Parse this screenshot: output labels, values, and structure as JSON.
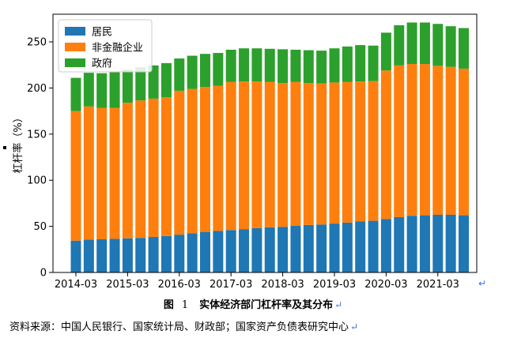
{
  "figure": {
    "caption_prefix": "图",
    "caption_number": "1",
    "caption_text": "实体经济部门杠杆率及其分布",
    "source_text": "资料来源：中国人民银行、国家统计局、财政部；国家资产负债表研究中心",
    "return_mark": "↵"
  },
  "chart_data": {
    "type": "bar",
    "stacked": true,
    "ylabel": "杠杆率（%）",
    "ylim": [
      0,
      280
    ],
    "yticks": [
      0,
      50,
      100,
      150,
      200,
      250
    ],
    "x_tick_labels": [
      "2014-03",
      "2015-03",
      "2016-03",
      "2017-03",
      "2018-03",
      "2019-03",
      "2020-03",
      "2021-03"
    ],
    "x_tick_every": 4,
    "legend_position": "top-left",
    "grid": false,
    "categories": [
      "2014-03",
      "2014-06",
      "2014-09",
      "2014-12",
      "2015-03",
      "2015-06",
      "2015-09",
      "2015-12",
      "2016-03",
      "2016-06",
      "2016-09",
      "2016-12",
      "2017-03",
      "2017-06",
      "2017-09",
      "2017-12",
      "2018-03",
      "2018-06",
      "2018-09",
      "2018-12",
      "2019-03",
      "2019-06",
      "2019-09",
      "2019-12",
      "2020-03",
      "2020-06",
      "2020-09",
      "2020-12",
      "2021-03",
      "2021-06",
      "2021-09"
    ],
    "series": [
      {
        "name": "居民",
        "color": "#1f77b4",
        "values": [
          34.5,
          35.5,
          36,
          36.5,
          37,
          37.5,
          38.5,
          39.5,
          41,
          42.5,
          44,
          45,
          46,
          47,
          48,
          49,
          49.5,
          50.5,
          51.5,
          52,
          53,
          54,
          55.5,
          56,
          58,
          60,
          61.5,
          62,
          62.5,
          62.5,
          62
        ]
      },
      {
        "name": "非金融企业",
        "color": "#ff7f0e",
        "values": [
          140.5,
          144.5,
          142.5,
          142,
          147,
          149,
          150,
          150.5,
          156,
          156.5,
          157,
          157.5,
          160.5,
          160,
          159,
          157.5,
          156,
          156,
          154,
          153,
          153,
          152.5,
          151.5,
          151.5,
          161,
          164.5,
          164.5,
          164,
          161.5,
          160.5,
          159
        ]
      },
      {
        "name": "政府",
        "color": "#2ca02c",
        "values": [
          36,
          36.5,
          37.5,
          38.5,
          36,
          36,
          36,
          37,
          35,
          36,
          36,
          35.5,
          35,
          36,
          36,
          36,
          36.5,
          35,
          35.5,
          35.5,
          37,
          38.5,
          39.5,
          38.5,
          41,
          43.5,
          45,
          45,
          45.5,
          44,
          44
        ]
      }
    ]
  }
}
